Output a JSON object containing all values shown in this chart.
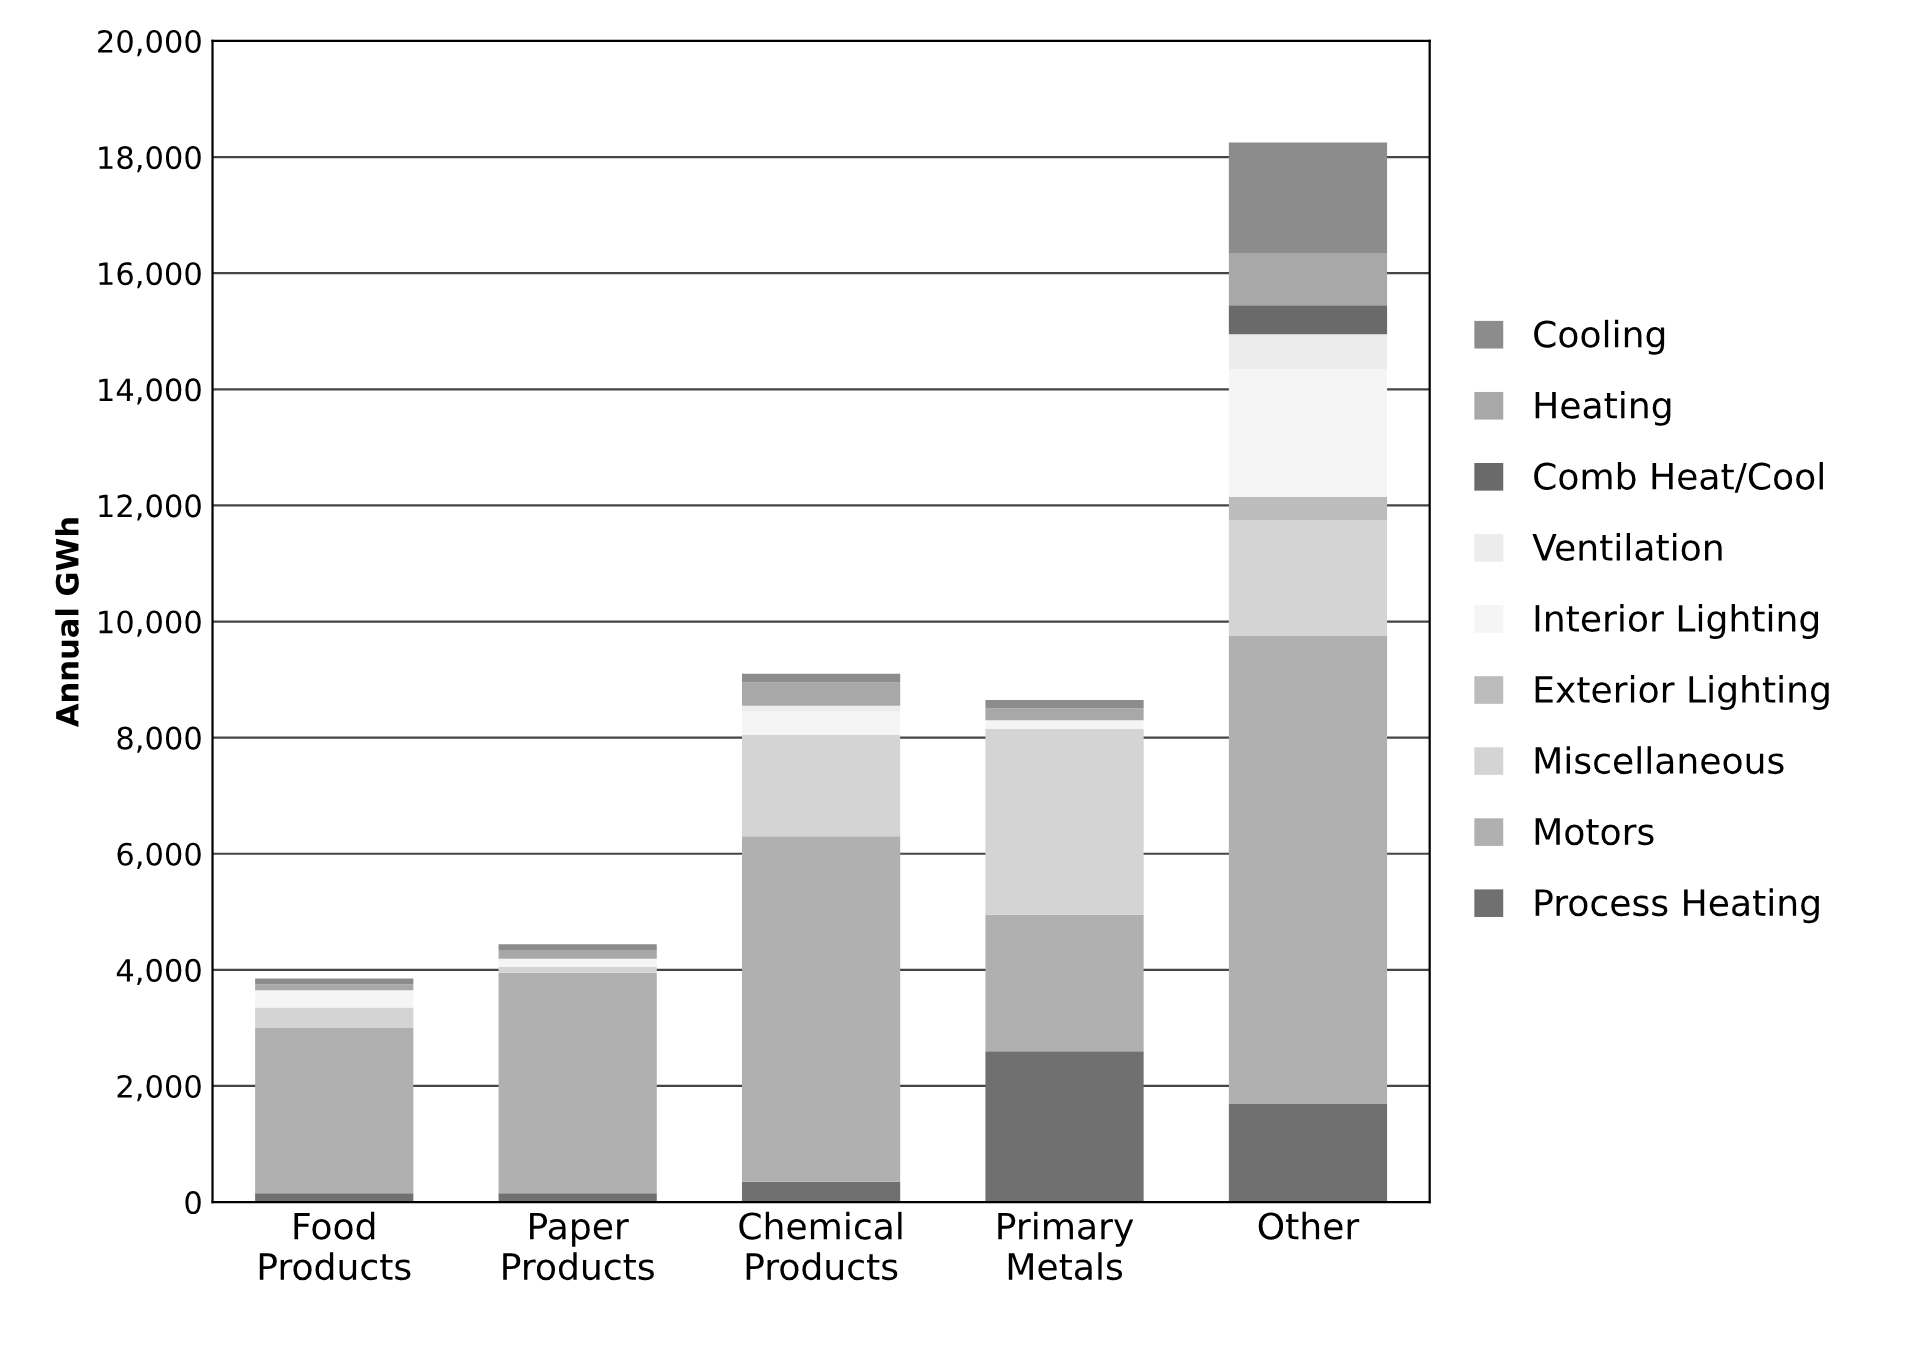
{
  "chart_data": {
    "type": "bar",
    "stacked": true,
    "ylabel": "Annual GWh",
    "categories": [
      "Food\nProducts",
      "Paper\nProducts",
      "Chemical\nProducts",
      "Primary\nMetals",
      "Other"
    ],
    "series": [
      {
        "name": "Process Heating",
        "color": "#707070",
        "values": [
          150,
          150,
          350,
          2600,
          1700
        ]
      },
      {
        "name": "Motors",
        "color": "#b0b0b0",
        "values": [
          2850,
          3800,
          5950,
          2350,
          8050
        ]
      },
      {
        "name": "Miscellaneous",
        "color": "#d4d4d4",
        "values": [
          350,
          100,
          1750,
          3200,
          2000
        ]
      },
      {
        "name": "Exterior Lighting",
        "color": "#bcbcbc",
        "values": [
          null,
          null,
          null,
          null,
          400
        ]
      },
      {
        "name": "Interior Lighting",
        "color": "#f5f5f5",
        "values": [
          300,
          140,
          400,
          150,
          2200
        ]
      },
      {
        "name": "Ventilation",
        "color": "#ececec",
        "values": [
          0,
          0,
          100,
          0,
          600
        ]
      },
      {
        "name": "Comb Heat/Cool",
        "color": "#6a6a6a",
        "values": [
          0,
          0,
          0,
          0,
          500
        ]
      },
      {
        "name": "Heating",
        "color": "#a8a8a8",
        "values": [
          100,
          150,
          400,
          200,
          900
        ]
      },
      {
        "name": "Cooling",
        "color": "#8c8c8c",
        "values": [
          100,
          100,
          150,
          150,
          1900
        ]
      }
    ],
    "ylim": [
      0,
      20000
    ],
    "yticks": [
      {
        "value": 0,
        "label": "0"
      },
      {
        "value": 2000,
        "label": "2,000"
      },
      {
        "value": 4000,
        "label": "4,000"
      },
      {
        "value": 6000,
        "label": "6,000"
      },
      {
        "value": 8000,
        "label": "8,000"
      },
      {
        "value": 10000,
        "label": "10,000"
      },
      {
        "value": 12000,
        "label": "12,000"
      },
      {
        "value": 14000,
        "label": "14,000"
      },
      {
        "value": 16000,
        "label": "16,000"
      },
      {
        "value": 18000,
        "label": "18,000"
      },
      {
        "value": 20000,
        "label": "20,000"
      }
    ],
    "grid": "y",
    "legend": "right"
  }
}
